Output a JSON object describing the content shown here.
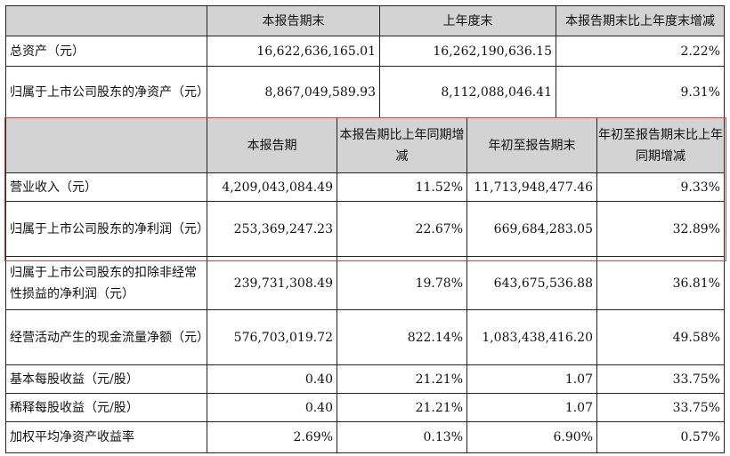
{
  "top_header": [
    "",
    "本报告期末",
    "上年度末",
    "本报告期末比上年度末增减"
  ],
  "top_rows": [
    {
      "label": "总资产（元）",
      "v1": "16,622,636,165.01",
      "v2": "16,262,190,636.15",
      "v3": "2.22%"
    },
    {
      "label": "归属于上市公司股东的净资产（元）",
      "v1": "8,867,049,589.93",
      "v2": "8,112,088,046.41",
      "v3": "9.31%"
    }
  ],
  "sub_header": [
    "",
    "本报告期",
    "本报告期比上年同期增减",
    "年初至报告期末",
    "年初至报告期末比上年同期增减"
  ],
  "sub_rows": [
    {
      "label": "营业收入（元）",
      "v1": "4,209,043,084.49",
      "v2": "11.52%",
      "v3": "11,713,948,477.46",
      "v4": "9.33%"
    },
    {
      "label": "归属于上市公司股东的净利润（元）",
      "v1": "253,369,247.23",
      "v2": "22.67%",
      "v3": "669,684,283.05",
      "v4": "32.89%"
    },
    {
      "label": "归属于上市公司股东的扣除非经常性损益的净利润（元）",
      "v1": "239,731,308.49",
      "v2": "19.78%",
      "v3": "643,675,536.88",
      "v4": "36.81%"
    },
    {
      "label": "经营活动产生的现金流量净额（元）",
      "v1": "576,703,019.72",
      "v2": "822.14%",
      "v3": "1,083,438,416.20",
      "v4": "49.58%"
    },
    {
      "label": "基本每股收益（元/股）",
      "v1": "0.40",
      "v2": "21.21%",
      "v3": "1.07",
      "v4": "33.75%"
    },
    {
      "label": "稀释每股收益（元/股）",
      "v1": "0.40",
      "v2": "21.21%",
      "v3": "1.07",
      "v4": "33.75%"
    },
    {
      "label": "加权平均净资产收益率",
      "v1": "2.69%",
      "v2": "0.13%",
      "v3": "6.90%",
      "v4": "0.57%"
    }
  ]
}
